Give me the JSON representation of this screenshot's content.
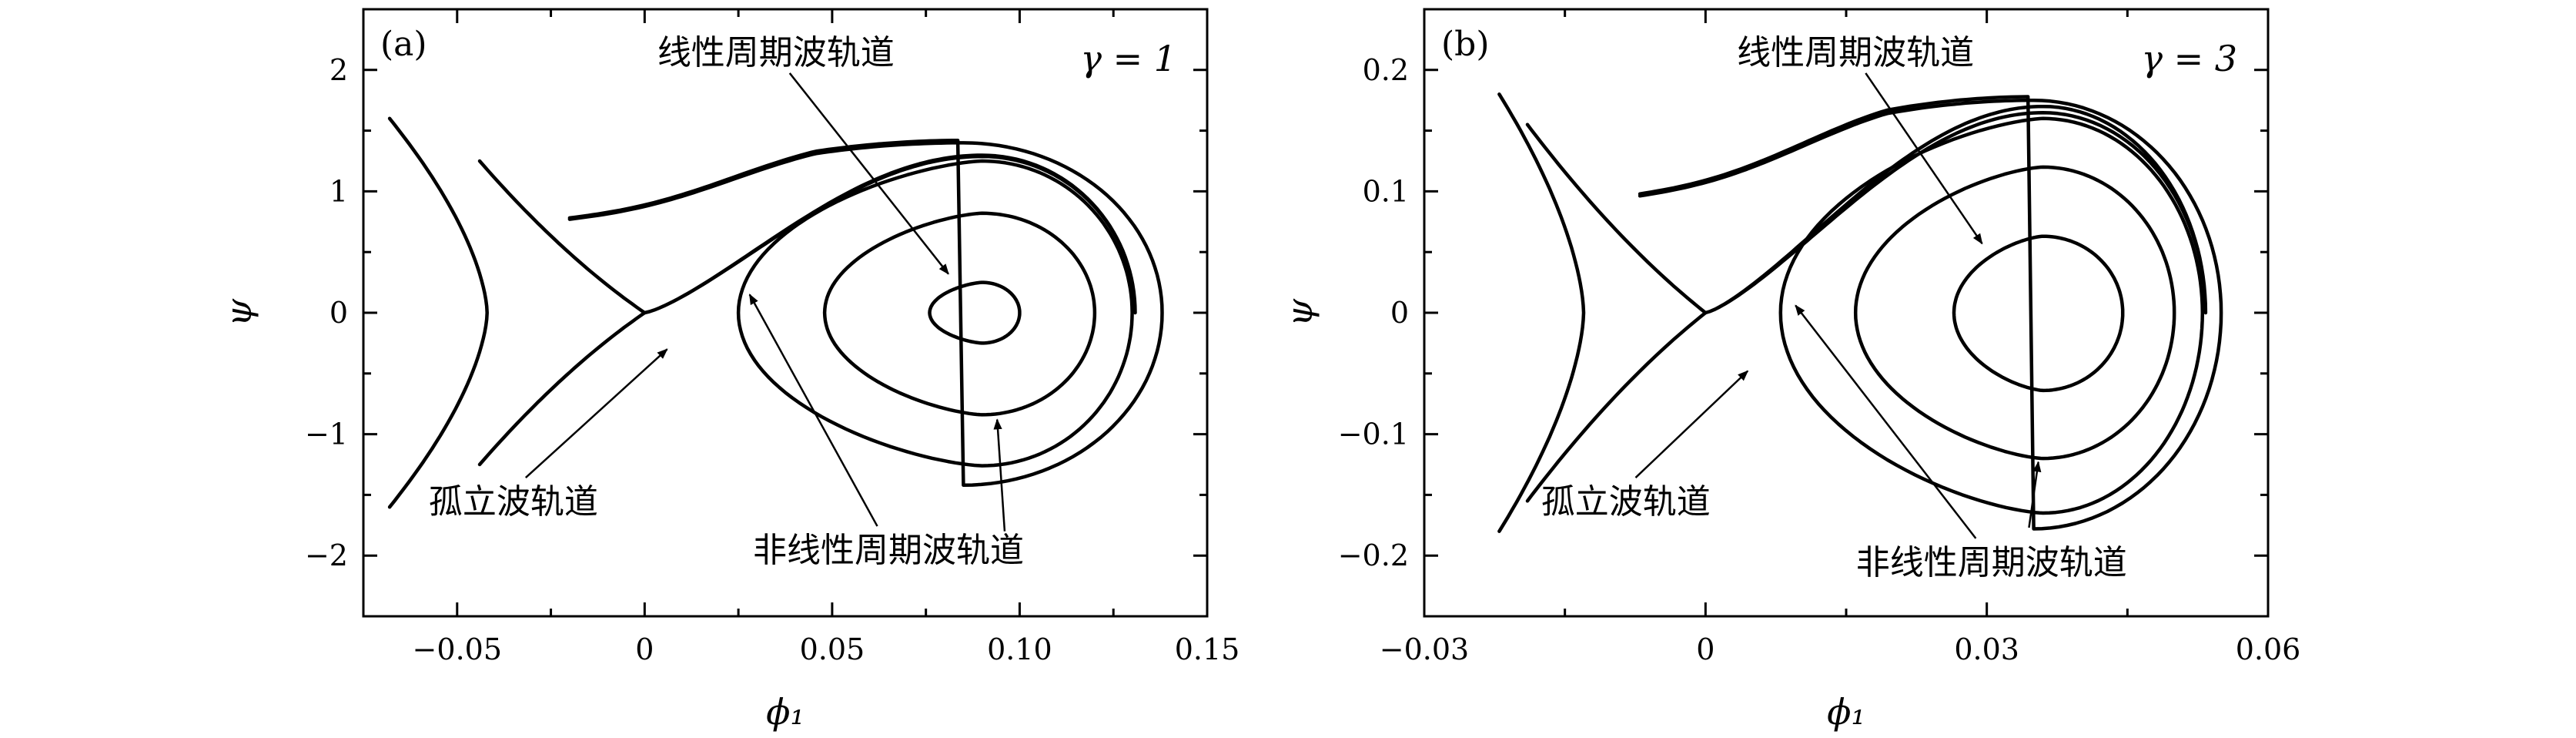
{
  "chart_data": [
    {
      "type": "line",
      "panel_label": "(a)",
      "parameter_label": "γ = 1",
      "xlabel": "ϕ₁",
      "ylabel": "ψ",
      "xlim": [
        -0.075,
        0.15
      ],
      "ylim": [
        -2.5,
        2.5
      ],
      "x_ticks": [
        -0.05,
        0,
        0.05,
        0.1,
        0.15
      ],
      "x_tick_labels": [
        "−0.05",
        "0",
        "0.05",
        "0.10",
        "0.15"
      ],
      "y_ticks": [
        -2,
        -1,
        0,
        1,
        2
      ],
      "y_tick_labels": [
        "−2",
        "−1",
        "0",
        "1",
        "2"
      ],
      "saddle_point": [
        0,
        0
      ],
      "center_point": [
        0.09,
        0
      ],
      "orbits": [
        {
          "kind": "outer-open",
          "x_vertex": -0.042,
          "x_end": -0.068,
          "y_end": 1.6
        },
        {
          "kind": "separatrix-left",
          "x_end": -0.044,
          "y_end": 1.25
        },
        {
          "kind": "outer-nonlinear",
          "x_min": -0.02,
          "x_max": 0.138,
          "y_top": 1.4,
          "y_bottom": -1.42,
          "x_peak": 0.085
        },
        {
          "kind": "closed",
          "x_min": 0.025,
          "x_max": 0.13,
          "y_top": 1.25,
          "y_bottom": -1.26,
          "x_peak": 0.09
        },
        {
          "kind": "closed",
          "x_min": 0.048,
          "x_max": 0.12,
          "y_top": 0.82,
          "y_bottom": -0.84,
          "x_peak": 0.09
        },
        {
          "kind": "closed",
          "x_min": 0.076,
          "x_max": 0.1,
          "y_top": 0.25,
          "y_bottom": -0.25,
          "x_peak": 0.09
        }
      ],
      "annotations": [
        {
          "text": "线性周期波轨道",
          "text_at": [
            0.035,
            2.05
          ],
          "arrow_to": [
            0.081,
            0.32
          ]
        },
        {
          "text": "孤立波轨道",
          "text_at": [
            -0.035,
            -1.65
          ],
          "arrow_to": [
            0.006,
            -0.3
          ]
        },
        {
          "text": "非线性周期波轨道",
          "text_at": [
            0.065,
            -2.05
          ],
          "arrow_to": [
            0.028,
            0.15
          ]
        },
        {
          "text": "",
          "text_at": [
            0.096,
            -1.8
          ],
          "arrow_to": [
            0.094,
            -0.88
          ]
        }
      ]
    },
    {
      "type": "line",
      "panel_label": "(b)",
      "parameter_label": "γ = 3",
      "xlabel": "ϕ₁",
      "ylabel": "ψ",
      "xlim": [
        -0.03,
        0.06
      ],
      "ylim": [
        -0.25,
        0.25
      ],
      "x_ticks": [
        -0.03,
        0,
        0.03,
        0.06
      ],
      "x_tick_labels": [
        "−0.03",
        "0",
        "0.03",
        "0.06"
      ],
      "y_ticks": [
        -0.2,
        -0.1,
        0,
        0.1,
        0.2
      ],
      "y_tick_labels": [
        "−0.2",
        "−0.1",
        "0",
        "0.1",
        "0.2"
      ],
      "saddle_point": [
        0,
        0
      ],
      "center_point": [
        0.036,
        0
      ],
      "orbits": [
        {
          "kind": "outer-open",
          "x_vertex": -0.013,
          "x_end": -0.022,
          "y_end": 0.18
        },
        {
          "kind": "separatrix-left",
          "x_end": -0.019,
          "y_end": 0.155
        },
        {
          "kind": "outer-nonlinear",
          "x_min": -0.007,
          "x_max": 0.055,
          "y_top": 0.175,
          "y_bottom": -0.178,
          "x_peak": 0.035
        },
        {
          "kind": "closed",
          "x_min": 0.008,
          "x_max": 0.053,
          "y_top": 0.16,
          "y_bottom": -0.165,
          "x_peak": 0.036
        },
        {
          "kind": "closed",
          "x_min": 0.016,
          "x_max": 0.05,
          "y_top": 0.12,
          "y_bottom": -0.12,
          "x_peak": 0.036
        },
        {
          "kind": "closed",
          "x_min": 0.0265,
          "x_max": 0.0445,
          "y_top": 0.063,
          "y_bottom": -0.064,
          "x_peak": 0.036
        }
      ],
      "annotations": [
        {
          "text": "线性周期波轨道",
          "text_at": [
            0.016,
            0.205
          ],
          "arrow_to": [
            0.0295,
            0.057
          ]
        },
        {
          "text": "孤立波轨道",
          "text_at": [
            -0.0085,
            -0.165
          ],
          "arrow_to": [
            0.0045,
            -0.048
          ]
        },
        {
          "text": "非线性周期波轨道",
          "text_at": [
            0.0305,
            -0.215
          ],
          "arrow_to": [
            0.0096,
            0.006
          ]
        },
        {
          "text": "",
          "text_at": [
            0.0345,
            -0.177
          ],
          "arrow_to": [
            0.0355,
            -0.123
          ]
        }
      ]
    }
  ]
}
